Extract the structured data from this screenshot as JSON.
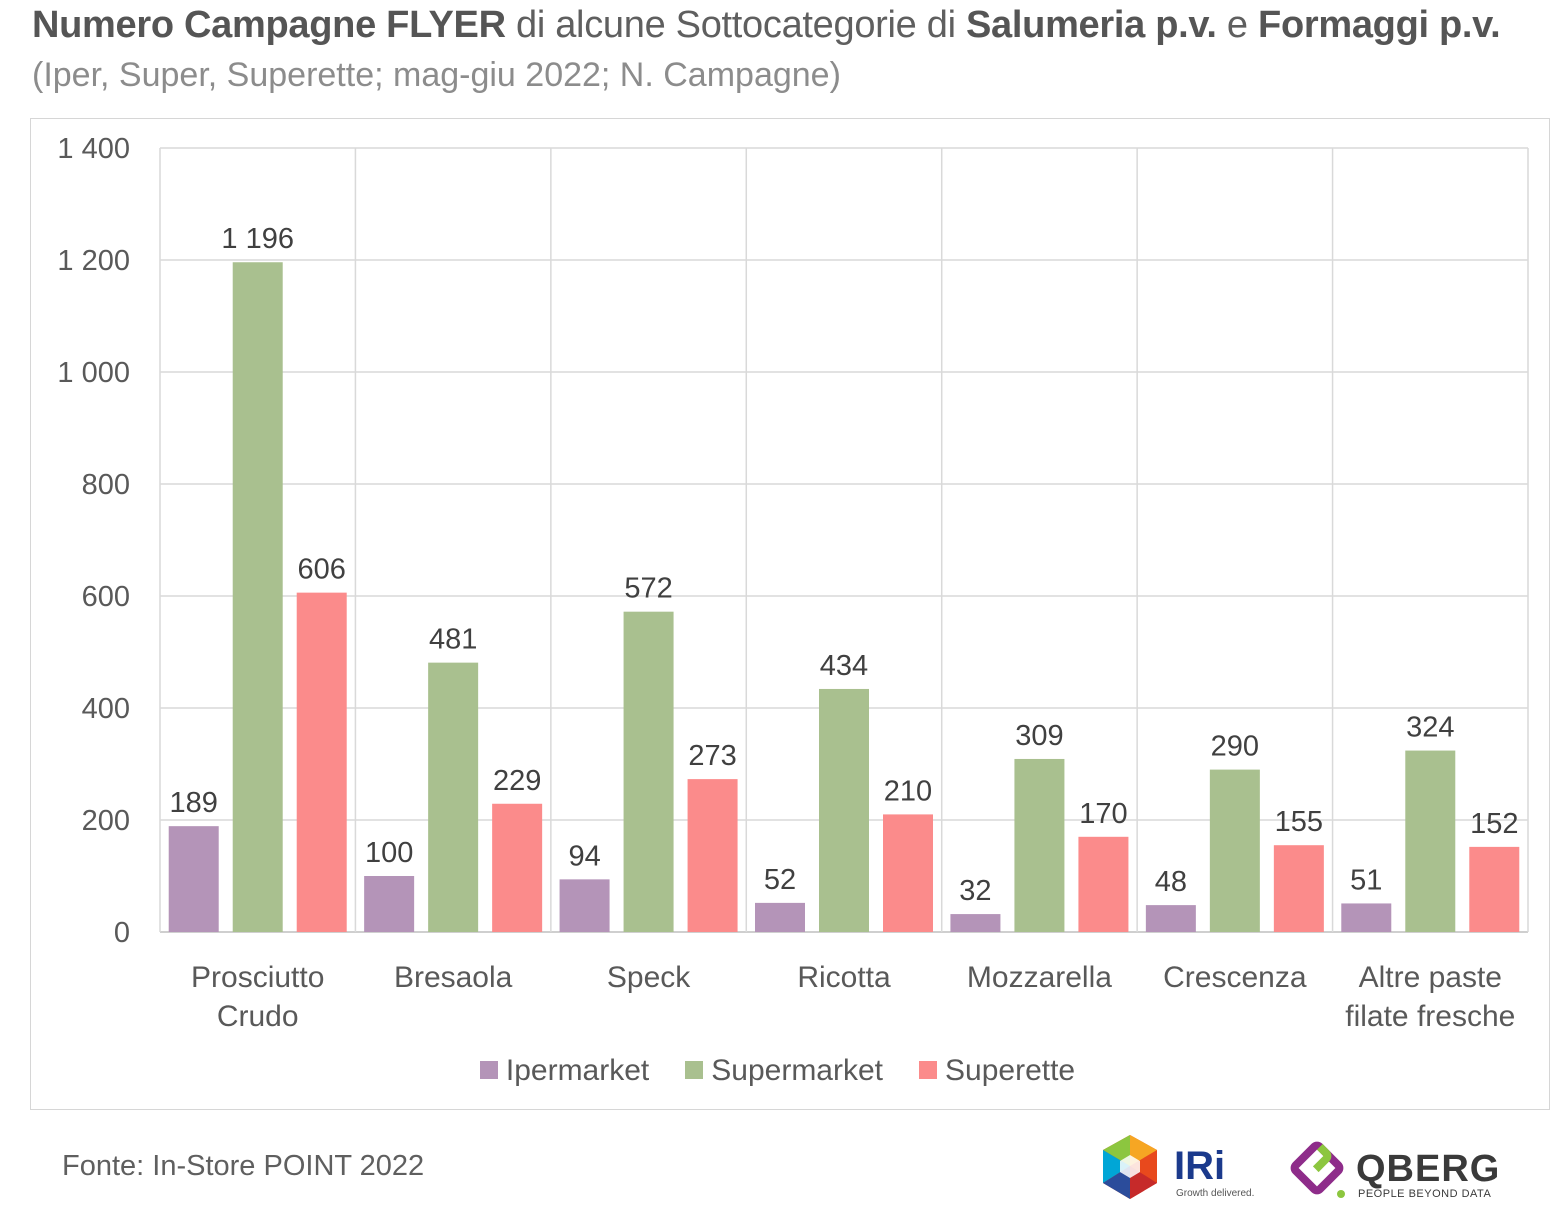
{
  "header": {
    "title_parts": [
      {
        "text": "Numero Campagne FLYER",
        "bold": true
      },
      {
        "text": " di alcune Sottocategorie di ",
        "bold": false
      },
      {
        "text": "Salumeria p.v.",
        "bold": true
      },
      {
        "text": " e ",
        "bold": false
      },
      {
        "text": "Formaggi p.v.",
        "bold": true
      }
    ],
    "subtitle": "(Iper, Super, Superette; mag-giu 2022; N. Campagne)"
  },
  "chart_data": {
    "type": "bar",
    "categories": [
      [
        "Prosciutto",
        "Crudo"
      ],
      [
        "Bresaola"
      ],
      [
        "Speck"
      ],
      [
        "Ricotta"
      ],
      [
        "Mozzarella"
      ],
      [
        "Crescenza"
      ],
      [
        "Altre paste",
        "filate fresche"
      ]
    ],
    "series": [
      {
        "name": "Ipermarket",
        "color": "#b494b8",
        "values": [
          189,
          100,
          94,
          52,
          32,
          48,
          51
        ],
        "labels": [
          "189",
          "100",
          "94",
          "52",
          "32",
          "48",
          "51"
        ]
      },
      {
        "name": "Supermarket",
        "color": "#a9c08f",
        "values": [
          1196,
          481,
          572,
          434,
          309,
          290,
          324
        ],
        "labels": [
          "1 196",
          "481",
          "572",
          "434",
          "309",
          "290",
          "324"
        ]
      },
      {
        "name": "Superette",
        "color": "#fb8b8b",
        "values": [
          606,
          229,
          273,
          210,
          170,
          155,
          152
        ],
        "labels": [
          "606",
          "229",
          "273",
          "210",
          "170",
          "155",
          "152"
        ]
      }
    ],
    "ylim": [
      0,
      1400
    ],
    "yticks": [
      0,
      200,
      400,
      600,
      800,
      1000,
      1200,
      1400
    ],
    "ytick_labels": [
      "0",
      "200",
      "400",
      "600",
      "800",
      "1 000",
      "1 200",
      "1 400"
    ],
    "grid": true,
    "legend_position": "bottom"
  },
  "footer": {
    "source": "Fonte: In-Store POINT 2022",
    "iri_logo_text": "IRi",
    "iri_tagline": "Growth delivered.",
    "qberg_logo_text": "QBERG",
    "qberg_tagline": "PEOPLE BEYOND DATA"
  },
  "colors": {
    "grid": "#d9d9d9",
    "axis": "#bfbfbf"
  }
}
